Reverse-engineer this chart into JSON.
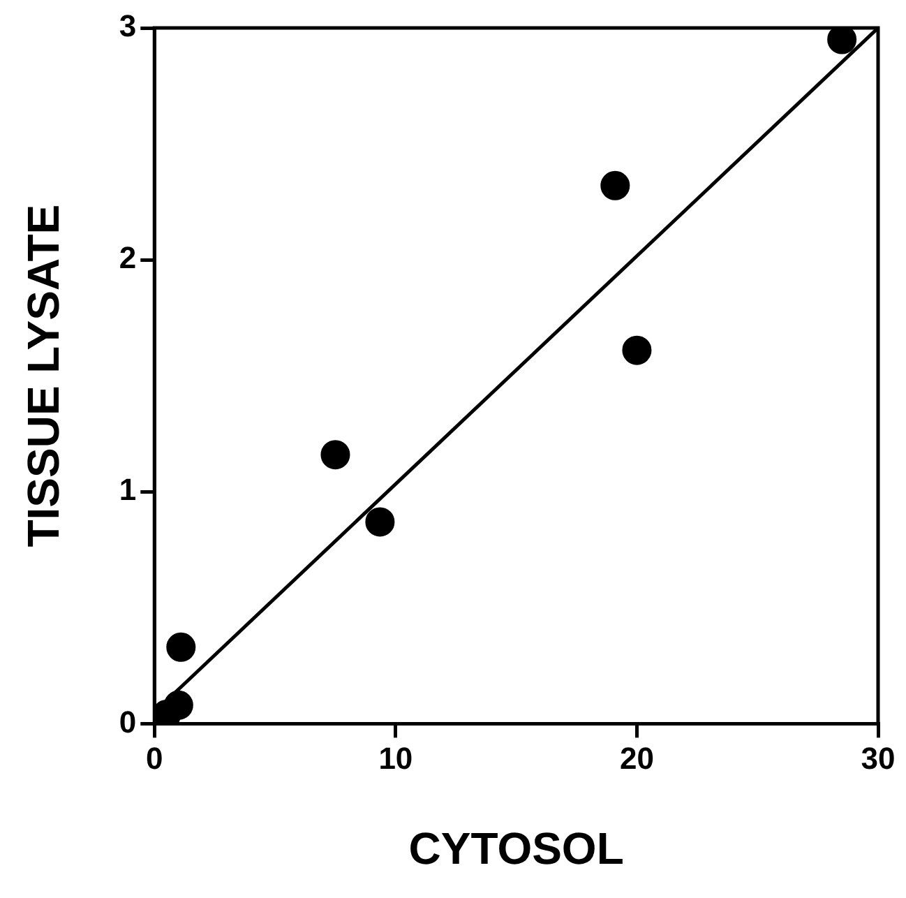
{
  "chart_data": {
    "type": "scatter",
    "xlabel": "CYTOSOL",
    "ylabel": "TISSUE LYSATE",
    "xlim": [
      0,
      30
    ],
    "ylim": [
      0,
      3
    ],
    "xticks": [
      0,
      10,
      20,
      30
    ],
    "yticks": [
      0,
      1,
      2,
      3
    ],
    "grid": false,
    "legend": false,
    "marker": "circle",
    "series": [
      {
        "color": "#000000",
        "x": [
          0.5,
          1.0,
          1.1,
          7.5,
          9.35,
          19.1,
          20.0,
          28.5
        ],
        "values": [
          0.04,
          0.08,
          0.33,
          1.16,
          0.87,
          2.32,
          1.61,
          2.95
        ]
      },
      {
        "type": "line",
        "color": "#000000",
        "marker": "none",
        "line_style": "solid",
        "x": [
          0,
          30
        ],
        "values": [
          0.05,
          3.0
        ]
      }
    ]
  }
}
